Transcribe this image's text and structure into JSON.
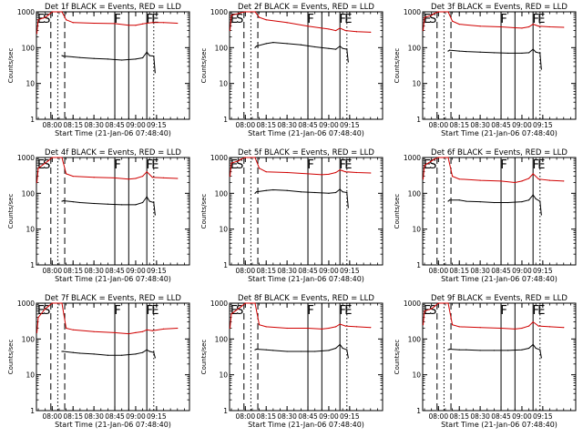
{
  "colors": {
    "events": "#000000",
    "lld": "#d00000",
    "background": "#ffffff"
  },
  "chart_data": [
    {
      "type": "line",
      "title": "Det 1f BLACK = Events, RED = LLD",
      "ylabel": "Counts/sec",
      "xlabel": "Start Time (21-Jan-06 07:48:40)",
      "yscale": "log",
      "ylim": [
        1,
        1000
      ],
      "yticks": [
        "1",
        "10",
        "100",
        "1000"
      ],
      "xticks": [
        "08:00",
        "08:15",
        "08:30",
        "08:45",
        "09:00",
        "09:15"
      ],
      "peak_labels": [
        "E",
        "S",
        "F",
        "F",
        "E"
      ],
      "series": [
        {
          "name": "Events",
          "color": "#000000",
          "x": [
            "08:07",
            "08:08",
            "08:15",
            "08:20",
            "08:30",
            "08:40",
            "08:50",
            "09:00",
            "09:05",
            "09:08",
            "09:10",
            "09:13",
            "09:14"
          ],
          "y": [
            60,
            58,
            55,
            53,
            50,
            48,
            45,
            48,
            52,
            75,
            60,
            58,
            20
          ]
        },
        {
          "name": "LLD",
          "color": "#d00000",
          "x": [
            "07:49",
            "07:50",
            "07:55",
            "07:57",
            "08:00",
            "08:07",
            "08:10",
            "08:15",
            "08:30",
            "08:45",
            "08:55",
            "09:00",
            "09:05",
            "09:08",
            "09:12",
            "09:20",
            "09:30"
          ],
          "y": [
            250,
            600,
            700,
            800,
            1000,
            1000,
            600,
            500,
            480,
            470,
            420,
            420,
            460,
            480,
            500,
            500,
            480
          ]
        }
      ]
    },
    {
      "type": "line",
      "title": "Det 2f BLACK = Events, RED = LLD",
      "ylabel": "Counts/sec",
      "xlabel": "Start Time (21-Jan-06 07:48:40)",
      "yscale": "log",
      "ylim": [
        1,
        1000
      ],
      "yticks": [
        "1",
        "10",
        "100",
        "1000"
      ],
      "xticks": [
        "08:00",
        "08:15",
        "08:30",
        "08:45",
        "09:00",
        "09:15"
      ],
      "peak_labels": [
        "E",
        "S",
        "F",
        "F",
        "E"
      ],
      "series": [
        {
          "name": "Events",
          "color": "#000000",
          "x": [
            "08:07",
            "08:08",
            "08:15",
            "08:20",
            "08:30",
            "08:40",
            "08:50",
            "09:00",
            "09:05",
            "09:08",
            "09:10",
            "09:13",
            "09:14"
          ],
          "y": [
            100,
            110,
            130,
            140,
            130,
            120,
            105,
            95,
            90,
            110,
            95,
            90,
            40
          ]
        },
        {
          "name": "LLD",
          "color": "#d00000",
          "x": [
            "07:49",
            "07:50",
            "07:55",
            "07:57",
            "08:00",
            "08:07",
            "08:10",
            "08:15",
            "08:30",
            "08:45",
            "08:55",
            "09:00",
            "09:05",
            "09:08",
            "09:12",
            "09:20",
            "09:30"
          ],
          "y": [
            300,
            800,
            900,
            950,
            1000,
            1000,
            700,
            600,
            500,
            400,
            350,
            330,
            300,
            350,
            300,
            280,
            270
          ]
        }
      ]
    },
    {
      "type": "line",
      "title": "Det 3f BLACK = Events, RED = LLD",
      "ylabel": "Counts/sec",
      "xlabel": "Start Time (21-Jan-06 07:48:40)",
      "yscale": "log",
      "ylim": [
        1,
        1000
      ],
      "yticks": [
        "1",
        "10",
        "100",
        "1000"
      ],
      "xticks": [
        "08:00",
        "08:15",
        "08:30",
        "08:45",
        "09:00",
        "09:15"
      ],
      "peak_labels": [
        "E",
        "S",
        "F",
        "F",
        "E"
      ],
      "series": [
        {
          "name": "Events",
          "color": "#000000",
          "x": [
            "08:07",
            "08:08",
            "08:15",
            "08:20",
            "08:30",
            "08:40",
            "08:50",
            "09:00",
            "09:05",
            "09:08",
            "09:10",
            "09:13",
            "09:14"
          ],
          "y": [
            80,
            85,
            80,
            78,
            75,
            72,
            70,
            70,
            72,
            90,
            75,
            70,
            25
          ]
        },
        {
          "name": "LLD",
          "color": "#d00000",
          "x": [
            "07:49",
            "07:50",
            "07:55",
            "07:57",
            "08:00",
            "08:07",
            "08:10",
            "08:15",
            "08:30",
            "08:45",
            "08:55",
            "09:00",
            "09:05",
            "09:08",
            "09:12",
            "09:20",
            "09:30"
          ],
          "y": [
            300,
            700,
            800,
            900,
            1000,
            1000,
            550,
            450,
            400,
            380,
            360,
            350,
            380,
            450,
            400,
            380,
            370
          ]
        }
      ]
    },
    {
      "type": "line",
      "title": "Det 4f BLACK = Events, RED = LLD",
      "ylabel": "Counts/sec",
      "xlabel": "Start Time (21-Jan-06 07:48:40)",
      "yscale": "log",
      "ylim": [
        1,
        1000
      ],
      "yticks": [
        "1",
        "10",
        "100",
        "1000"
      ],
      "xticks": [
        "08:00",
        "08:15",
        "08:30",
        "08:45",
        "09:00",
        "09:15"
      ],
      "peak_labels": [
        "E",
        "S",
        "F",
        "F",
        "E"
      ],
      "series": [
        {
          "name": "Events",
          "color": "#000000",
          "x": [
            "08:07",
            "08:08",
            "08:15",
            "08:20",
            "08:30",
            "08:40",
            "08:50",
            "09:00",
            "09:05",
            "09:08",
            "09:10",
            "09:13",
            "09:14"
          ],
          "y": [
            60,
            62,
            58,
            55,
            52,
            50,
            48,
            48,
            55,
            80,
            60,
            55,
            25
          ]
        },
        {
          "name": "LLD",
          "color": "#d00000",
          "x": [
            "07:49",
            "07:50",
            "07:55",
            "07:57",
            "08:00",
            "08:07",
            "08:10",
            "08:15",
            "08:30",
            "08:45",
            "08:55",
            "09:00",
            "09:05",
            "09:08",
            "09:12",
            "09:20",
            "09:30"
          ],
          "y": [
            200,
            500,
            700,
            800,
            1000,
            1000,
            350,
            300,
            280,
            270,
            250,
            260,
            300,
            400,
            280,
            270,
            260
          ]
        }
      ]
    },
    {
      "type": "line",
      "title": "Det 5f BLACK = Events, RED = LLD",
      "ylabel": "Counts/sec",
      "xlabel": "Start Time (21-Jan-06 07:48:40)",
      "yscale": "log",
      "ylim": [
        1,
        1000
      ],
      "yticks": [
        "1",
        "10",
        "100",
        "1000"
      ],
      "xticks": [
        "08:00",
        "08:15",
        "08:30",
        "08:45",
        "09:00",
        "09:15"
      ],
      "peak_labels": [
        "E",
        "S",
        "F",
        "F",
        "E"
      ],
      "series": [
        {
          "name": "Events",
          "color": "#000000",
          "x": [
            "08:07",
            "08:08",
            "08:15",
            "08:20",
            "08:30",
            "08:40",
            "08:50",
            "09:00",
            "09:05",
            "09:08",
            "09:10",
            "09:13",
            "09:14"
          ],
          "y": [
            100,
            110,
            120,
            125,
            120,
            110,
            105,
            100,
            105,
            130,
            110,
            105,
            40
          ]
        },
        {
          "name": "LLD",
          "color": "#d00000",
          "x": [
            "07:49",
            "07:50",
            "07:55",
            "07:57",
            "08:00",
            "08:07",
            "08:10",
            "08:15",
            "08:30",
            "08:45",
            "08:55",
            "09:00",
            "09:05",
            "09:08",
            "09:12",
            "09:20",
            "09:30"
          ],
          "y": [
            300,
            700,
            800,
            900,
            1000,
            1000,
            500,
            400,
            380,
            350,
            330,
            340,
            380,
            450,
            400,
            380,
            370
          ]
        }
      ]
    },
    {
      "type": "line",
      "title": "Det 6f BLACK = Events, RED = LLD",
      "ylabel": "Counts/sec",
      "xlabel": "Start Time (21-Jan-06 07:48:40)",
      "yscale": "log",
      "ylim": [
        1,
        1000
      ],
      "yticks": [
        "1",
        "10",
        "100",
        "1000"
      ],
      "xticks": [
        "08:00",
        "08:15",
        "08:30",
        "08:45",
        "09:00",
        "09:15"
      ],
      "peak_labels": [
        "E",
        "S",
        "F",
        "F",
        "E"
      ],
      "series": [
        {
          "name": "Events",
          "color": "#000000",
          "x": [
            "08:07",
            "08:08",
            "08:15",
            "08:20",
            "08:30",
            "08:40",
            "08:50",
            "09:00",
            "09:05",
            "09:08",
            "09:10",
            "09:13",
            "09:14"
          ],
          "y": [
            60,
            65,
            65,
            60,
            58,
            55,
            55,
            58,
            65,
            90,
            70,
            60,
            25
          ]
        },
        {
          "name": "LLD",
          "color": "#d00000",
          "x": [
            "07:49",
            "07:50",
            "07:55",
            "07:57",
            "08:00",
            "08:07",
            "08:10",
            "08:15",
            "08:30",
            "08:45",
            "08:55",
            "09:00",
            "09:05",
            "09:08",
            "09:12",
            "09:20",
            "09:30"
          ],
          "y": [
            250,
            600,
            800,
            900,
            1000,
            1000,
            300,
            250,
            230,
            220,
            200,
            220,
            260,
            350,
            250,
            230,
            220
          ]
        }
      ]
    },
    {
      "type": "line",
      "title": "Det 7f BLACK = Events, RED = LLD",
      "ylabel": "Counts/sec",
      "xlabel": "Start Time (21-Jan-06 07:48:40)",
      "yscale": "log",
      "ylim": [
        1,
        1000
      ],
      "yticks": [
        "1",
        "10",
        "100",
        "1000"
      ],
      "xticks": [
        "08:00",
        "08:15",
        "08:30",
        "08:45",
        "09:00",
        "09:15"
      ],
      "peak_labels": [
        "E",
        "S",
        "F",
        "F",
        "E"
      ],
      "series": [
        {
          "name": "Events",
          "color": "#000000",
          "x": [
            "08:07",
            "08:08",
            "08:15",
            "08:20",
            "08:30",
            "08:40",
            "08:50",
            "09:00",
            "09:05",
            "09:08",
            "09:10",
            "09:13",
            "09:14"
          ],
          "y": [
            45,
            45,
            42,
            40,
            38,
            35,
            35,
            38,
            42,
            50,
            45,
            42,
            30
          ]
        },
        {
          "name": "LLD",
          "color": "#d00000",
          "x": [
            "07:49",
            "07:50",
            "07:55",
            "07:57",
            "08:00",
            "08:07",
            "08:10",
            "08:15",
            "08:30",
            "08:45",
            "08:55",
            "09:00",
            "09:05",
            "09:08",
            "09:12",
            "09:20",
            "09:30"
          ],
          "y": [
            150,
            400,
            700,
            800,
            1000,
            1000,
            200,
            180,
            160,
            150,
            140,
            150,
            160,
            180,
            170,
            190,
            200
          ]
        }
      ]
    },
    {
      "type": "line",
      "title": "Det 8f BLACK = Events, RED = LLD",
      "ylabel": "Counts/sec",
      "xlabel": "Start Time (21-Jan-06 07:48:40)",
      "yscale": "log",
      "ylim": [
        1,
        1000
      ],
      "yticks": [
        "1",
        "10",
        "100",
        "1000"
      ],
      "xticks": [
        "08:00",
        "08:15",
        "08:30",
        "08:45",
        "09:00",
        "09:15"
      ],
      "peak_labels": [
        "E",
        "S",
        "F",
        "F",
        "E"
      ],
      "series": [
        {
          "name": "Events",
          "color": "#000000",
          "x": [
            "08:07",
            "08:08",
            "08:15",
            "08:20",
            "08:30",
            "08:40",
            "08:50",
            "09:00",
            "09:05",
            "09:08",
            "09:10",
            "09:13",
            "09:14"
          ],
          "y": [
            50,
            52,
            50,
            48,
            45,
            45,
            45,
            48,
            55,
            70,
            55,
            50,
            30
          ]
        },
        {
          "name": "LLD",
          "color": "#d00000",
          "x": [
            "07:49",
            "07:50",
            "07:55",
            "07:57",
            "08:00",
            "08:07",
            "08:10",
            "08:15",
            "08:30",
            "08:45",
            "08:55",
            "09:00",
            "09:05",
            "09:08",
            "09:12",
            "09:20",
            "09:30"
          ],
          "y": [
            200,
            500,
            700,
            800,
            1000,
            1000,
            250,
            220,
            200,
            200,
            190,
            200,
            220,
            260,
            230,
            220,
            210
          ]
        }
      ]
    },
    {
      "type": "line",
      "title": "Det 9f BLACK = Events, RED = LLD",
      "ylabel": "Counts/sec",
      "xlabel": "Start Time (21-Jan-06 07:48:40)",
      "yscale": "log",
      "ylim": [
        1,
        1000
      ],
      "yticks": [
        "1",
        "10",
        "100",
        "1000"
      ],
      "xticks": [
        "08:00",
        "08:15",
        "08:30",
        "08:45",
        "09:00",
        "09:15"
      ],
      "peak_labels": [
        "E",
        "S",
        "F",
        "F",
        "E"
      ],
      "series": [
        {
          "name": "Events",
          "color": "#000000",
          "x": [
            "08:07",
            "08:08",
            "08:15",
            "08:20",
            "08:30",
            "08:40",
            "08:50",
            "09:00",
            "09:05",
            "09:08",
            "09:10",
            "09:13",
            "09:14"
          ],
          "y": [
            50,
            52,
            50,
            50,
            48,
            48,
            48,
            50,
            55,
            70,
            55,
            50,
            30
          ]
        },
        {
          "name": "LLD",
          "color": "#d00000",
          "x": [
            "07:49",
            "07:50",
            "07:55",
            "07:57",
            "08:00",
            "08:07",
            "08:10",
            "08:15",
            "08:30",
            "08:45",
            "08:55",
            "09:00",
            "09:05",
            "09:08",
            "09:12",
            "09:20",
            "09:30"
          ],
          "y": [
            250,
            600,
            700,
            800,
            1000,
            1000,
            250,
            220,
            210,
            200,
            190,
            200,
            230,
            300,
            230,
            220,
            210
          ]
        }
      ]
    }
  ]
}
